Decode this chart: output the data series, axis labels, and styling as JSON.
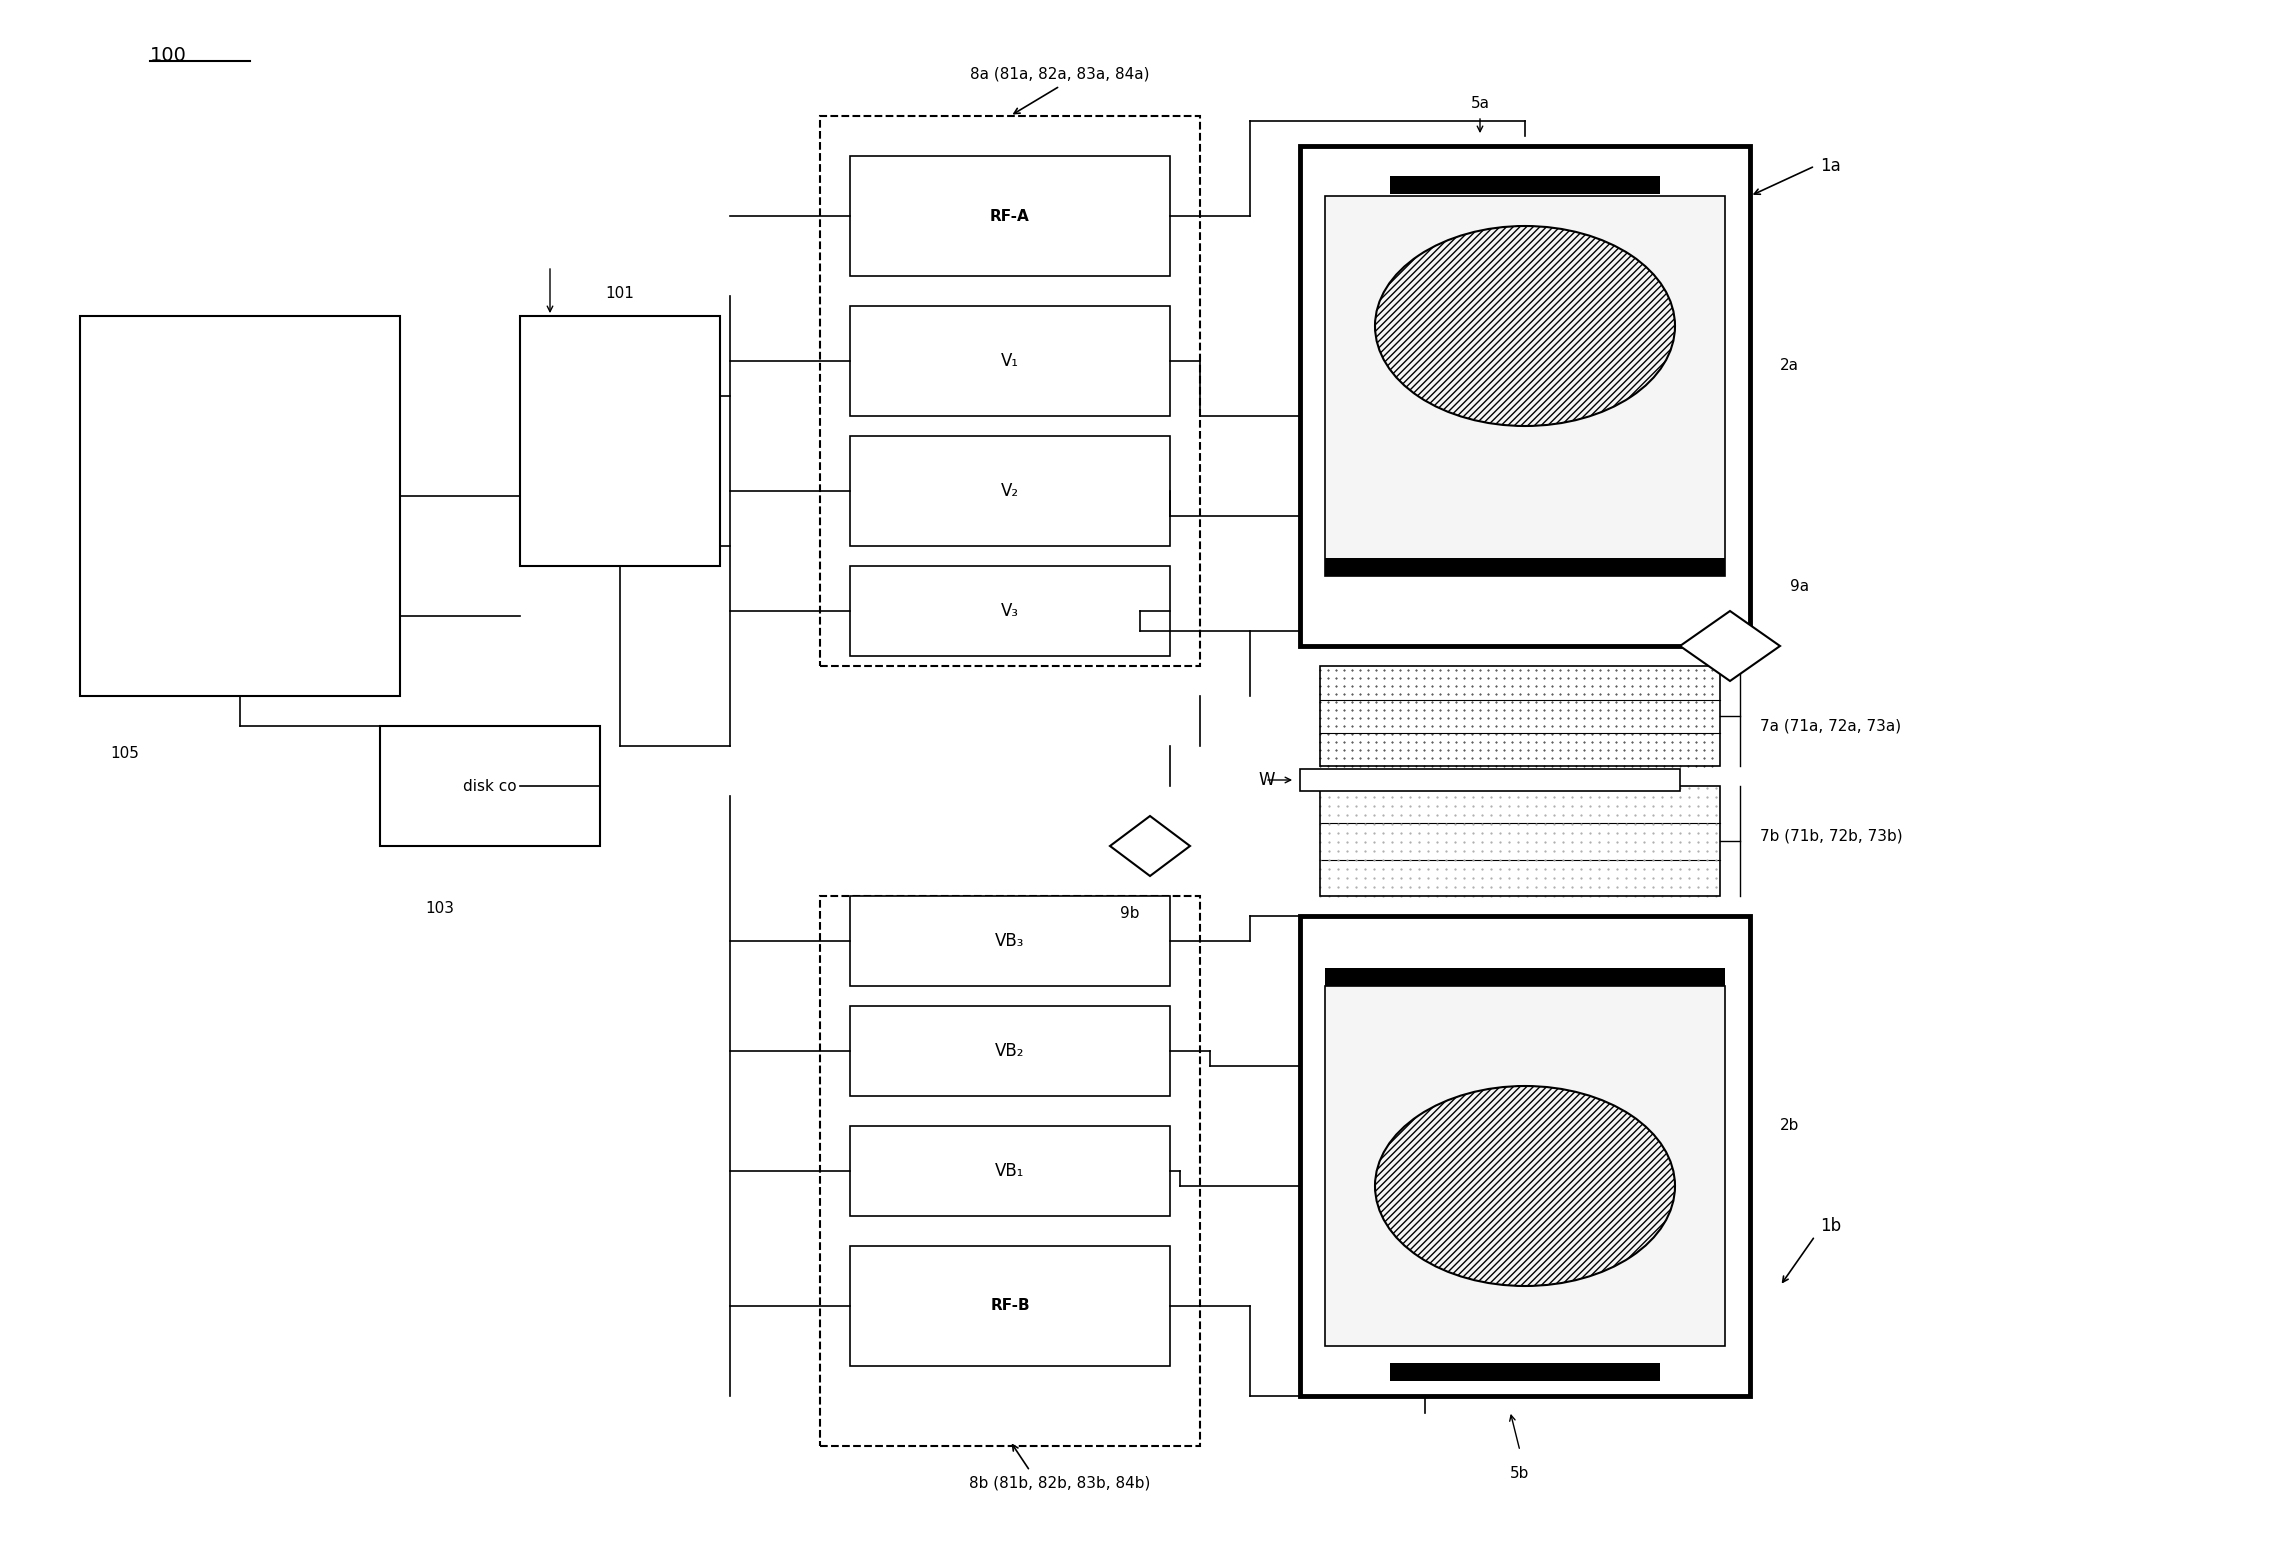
{
  "title": "",
  "bg_color": "#ffffff",
  "fig_width": 22.71,
  "fig_height": 15.46,
  "label_100": "100",
  "label_101": "101",
  "label_103": "103",
  "label_105": "105",
  "label_1a": "1a",
  "label_1b": "1b",
  "label_2a": "2a",
  "label_2b": "2b",
  "label_5a": "5a",
  "label_5b": "5b",
  "label_7a": "7a (71a, 72a, 73a)",
  "label_7b": "7b (71b, 72b, 73b)",
  "label_8a": "8a (81a, 82a, 83a, 84a)",
  "label_8b": "8b (81b, 82b, 83b, 84b)",
  "label_9a": "9a",
  "label_9b": "9b",
  "label_W": "W",
  "label_RFA": "RF-A",
  "label_V1": "V₁",
  "label_V2": "V₂",
  "label_V3": "V₃",
  "label_VB1": "VB₁",
  "label_VB2": "VB₂",
  "label_VB3": "VB₃",
  "label_RFB": "RF-B",
  "label_diskco": "disk co"
}
